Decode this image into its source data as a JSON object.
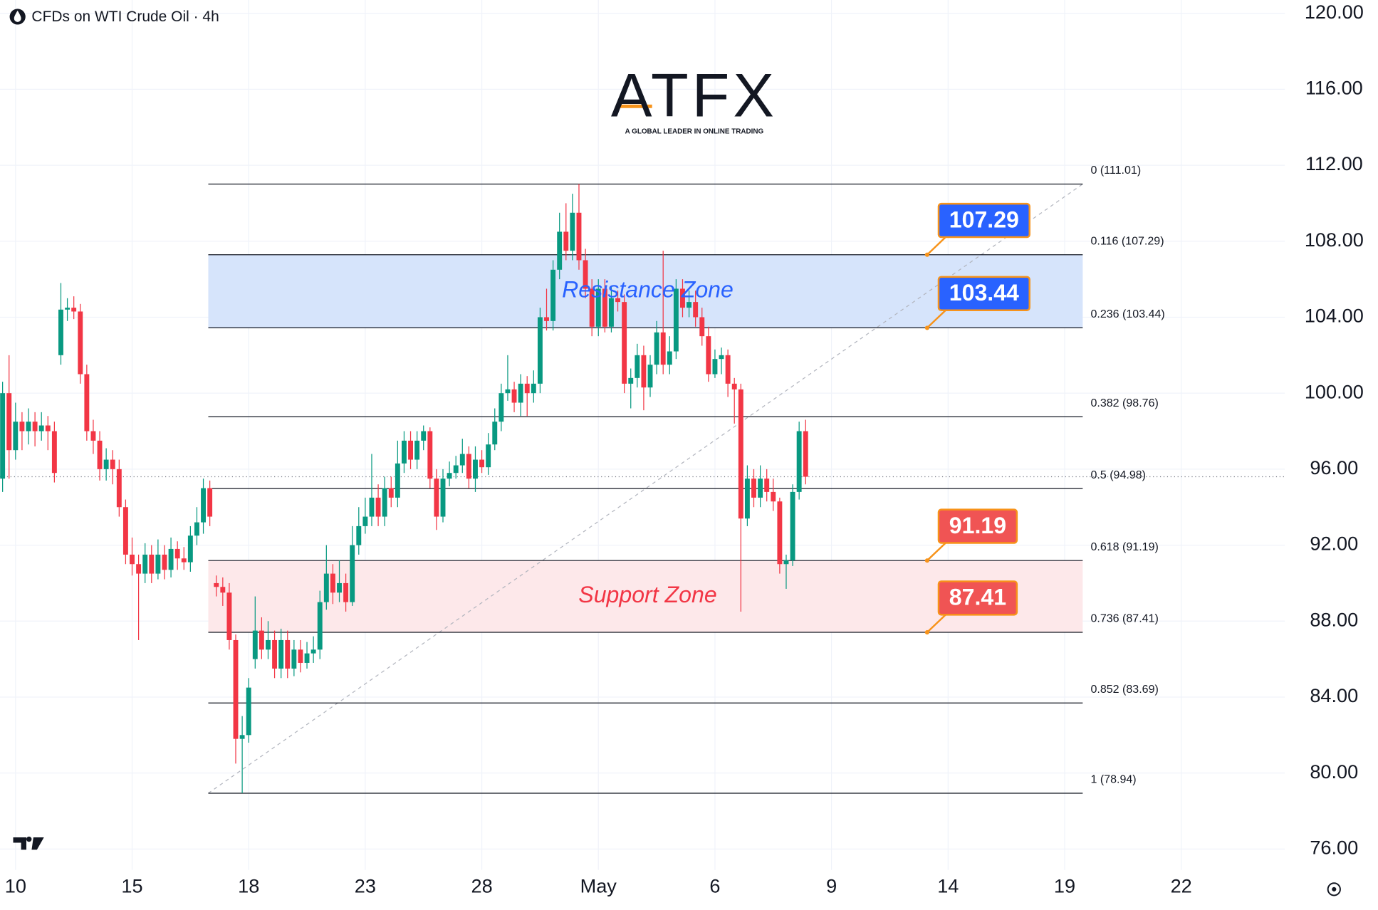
{
  "chart_data": {
    "type": "candlestick",
    "title": "CFDs on WTI Crude Oil · 4h",
    "logo": {
      "text": "ATFX",
      "tagline": "A GLOBAL LEADER IN ONLINE TRADING"
    },
    "up_color": "#089981",
    "down_color": "#f23645",
    "grid": true,
    "xlim": [
      -0.4,
      198
    ],
    "xticks": [
      {
        "value": 2,
        "label": "10"
      },
      {
        "value": 20,
        "label": "15"
      },
      {
        "value": 38,
        "label": "18"
      },
      {
        "value": 56,
        "label": "23"
      },
      {
        "value": 74,
        "label": "28"
      },
      {
        "value": 92,
        "label": "May"
      },
      {
        "value": 110,
        "label": "6"
      },
      {
        "value": 128,
        "label": "9"
      },
      {
        "value": 146,
        "label": "14"
      },
      {
        "value": 164,
        "label": "19"
      },
      {
        "value": 182,
        "label": "22"
      }
    ],
    "ylim": [
      74.9,
      120.7
    ],
    "yticks": [
      {
        "value": 76,
        "label": "76.00"
      },
      {
        "value": 80,
        "label": "80.00"
      },
      {
        "value": 84,
        "label": "84.00"
      },
      {
        "value": 88,
        "label": "88.00"
      },
      {
        "value": 92,
        "label": "92.00"
      },
      {
        "value": 96,
        "label": "96.00"
      },
      {
        "value": 100,
        "label": "100.00"
      },
      {
        "value": 104,
        "label": "104.00"
      },
      {
        "value": 108,
        "label": "108.00"
      },
      {
        "value": 112,
        "label": "112.00"
      },
      {
        "value": 116,
        "label": "116.00"
      },
      {
        "value": 120,
        "label": "120.00"
      }
    ],
    "open": [
      95.5,
      100,
      97,
      98.5,
      98,
      98.5,
      98,
      98.3,
      98,
      102,
      104.4,
      104.5,
      104.3,
      101,
      98,
      97.5,
      96,
      96.5,
      96,
      94,
      91.5,
      91,
      90.5,
      91.5,
      90.5,
      91.5,
      90.7,
      91.8,
      91.3,
      91.1,
      92.5,
      93.2,
      95,
      90,
      89.8,
      89.5,
      87,
      81.8,
      82,
      86,
      87.5,
      86.5,
      87,
      85.5,
      87,
      85.5,
      86.5,
      85.8,
      86.3,
      86.5,
      89,
      90.5,
      89.5,
      90,
      89,
      92,
      93,
      93.5,
      94.5,
      93.5,
      95,
      94.5,
      96.3,
      97.5,
      96.5,
      97.5,
      98,
      95.5,
      93.5,
      95.5,
      95.8,
      96.2,
      96.8,
      95.5,
      96.5,
      96.1,
      97.3,
      98.5,
      100,
      100.2,
      99.5,
      100.5,
      100,
      100.5,
      104,
      103.8,
      106.5,
      108.5,
      107.5,
      109.5,
      107,
      105.5,
      103.5,
      105.5,
      103.5,
      105,
      104.8,
      100.5,
      100.8,
      102,
      100.3,
      101.5,
      103.2,
      101.5,
      102.2,
      105.5,
      104.5,
      104.8,
      104,
      103,
      101,
      101.8,
      102,
      100.5,
      100.2,
      93.4,
      95.5,
      94.5,
      95.5,
      94.8,
      94.3,
      91,
      91.2,
      94.8,
      98
    ],
    "high": [
      100.6,
      102,
      99.5,
      99,
      99.2,
      99,
      99,
      98.8,
      98.5,
      105.8,
      105,
      105.1,
      104.7,
      101.5,
      98.6,
      98,
      97.1,
      97,
      96.5,
      94.4,
      92.4,
      91.5,
      92.1,
      92,
      92.3,
      92,
      92.4,
      92.2,
      91.9,
      93,
      94,
      95.5,
      95.4,
      90.4,
      90.3,
      90,
      87.3,
      83,
      85,
      89.3,
      88.2,
      88,
      87.5,
      87.6,
      87.5,
      87,
      87,
      86.9,
      87.2,
      89.6,
      92,
      91,
      91.2,
      90.5,
      93,
      94,
      94.5,
      96.8,
      95.2,
      95.6,
      95.6,
      97.5,
      98,
      98,
      98,
      98.3,
      98.2,
      96,
      96,
      96.4,
      96.7,
      97.6,
      97.2,
      97.2,
      97,
      97.9,
      99.2,
      100.5,
      102,
      100.6,
      101,
      100.9,
      101.2,
      104.5,
      105.5,
      107,
      109.5,
      110,
      110.5,
      111.01,
      107.6,
      106,
      106,
      106,
      105.6,
      105.4,
      105.2,
      101.3,
      102.6,
      102.5,
      102,
      103.8,
      107.5,
      103,
      106,
      106,
      105.4,
      105.4,
      104.5,
      103.5,
      102.3,
      102.4,
      102.3,
      100.8,
      100.5,
      96.2,
      96,
      96.2,
      96,
      95.5,
      94.5,
      91.5,
      95.2,
      98.5,
      98.6
    ],
    "low": [
      94.8,
      95.5,
      96.5,
      97,
      97.3,
      97.2,
      97.5,
      97,
      95.3,
      101.5,
      103.8,
      103.9,
      100.5,
      97.5,
      96.8,
      95.4,
      95.4,
      95.2,
      93.5,
      91,
      90.4,
      87,
      90,
      90,
      90.2,
      90.2,
      90.3,
      90.7,
      90.7,
      90.6,
      92,
      92.6,
      93,
      89.3,
      88.8,
      86.5,
      80.5,
      78.94,
      81.6,
      85.5,
      86,
      86,
      85,
      85,
      85,
      85.1,
      85.3,
      85.5,
      85.8,
      86,
      88.6,
      88.9,
      89,
      88.5,
      88.8,
      91.5,
      92.6,
      93,
      93,
      93,
      94,
      94,
      95.8,
      96,
      96,
      97,
      95,
      92.8,
      93.2,
      95.1,
      95.5,
      95.8,
      95,
      94.8,
      95.8,
      95.7,
      97,
      98,
      99.6,
      99,
      98.8,
      98.8,
      99.5,
      100,
      103.3,
      103.3,
      106,
      107,
      107,
      106.5,
      105,
      103,
      103,
      103.2,
      103.2,
      104.3,
      100,
      99.2,
      100.3,
      99.1,
      99.8,
      101,
      101,
      101,
      101.8,
      104,
      104,
      103.5,
      102.5,
      100.6,
      100.8,
      101,
      99.8,
      98.4,
      88.5,
      93,
      94,
      94,
      94.3,
      93.8,
      90.5,
      89.7,
      90.9,
      94.4,
      95.2
    ],
    "close": [
      100,
      97,
      98.5,
      98,
      98.5,
      98,
      98.3,
      98,
      95.8,
      104.4,
      104.5,
      104.3,
      101,
      98,
      97.5,
      96,
      96.5,
      96,
      94,
      91.5,
      91,
      90.5,
      91.5,
      90.5,
      91.5,
      90.7,
      91.8,
      91.3,
      91.1,
      92.5,
      93.2,
      95,
      93.5,
      89.8,
      89.5,
      87,
      81.8,
      82,
      84.5,
      87.5,
      86.5,
      87,
      85.5,
      87,
      85.5,
      86.5,
      85.8,
      86.3,
      86.5,
      89,
      90.5,
      89.5,
      90,
      89,
      92,
      93,
      93.5,
      94.5,
      93.5,
      95,
      94.5,
      96.3,
      97.5,
      96.5,
      97.5,
      98,
      95.5,
      93.5,
      95.5,
      95.8,
      96.2,
      96.8,
      95.5,
      96.5,
      96.1,
      97.3,
      98.5,
      100,
      100.2,
      99.5,
      100.5,
      100,
      100.5,
      104,
      103.8,
      106.5,
      108.5,
      107.5,
      109.5,
      107,
      105.5,
      103.5,
      105.5,
      103.5,
      105,
      104.8,
      100.5,
      100.8,
      102,
      100.3,
      101.5,
      103.2,
      101.5,
      102.2,
      105.5,
      104.5,
      104.8,
      104,
      103,
      101,
      101.8,
      102,
      100.5,
      100.2,
      93.4,
      95.5,
      94.5,
      95.5,
      94.8,
      94.3,
      91,
      91.2,
      94.8,
      98,
      95.6
    ],
    "fib_levels": [
      {
        "value": 111.01,
        "label": "0 (111.01)"
      },
      {
        "value": 107.29,
        "label": "0.116 (107.29)"
      },
      {
        "value": 103.44,
        "label": "0.236 (103.44)"
      },
      {
        "value": 98.76,
        "label": "0.382 (98.76)"
      },
      {
        "value": 94.98,
        "label": "0.5 (94.98)"
      },
      {
        "value": 91.19,
        "label": "0.618 (91.19)"
      },
      {
        "value": 87.41,
        "label": "0.736 (87.41)"
      },
      {
        "value": 83.69,
        "label": "0.852 (83.69)"
      },
      {
        "value": 78.94,
        "label": "1 (78.94)"
      }
    ],
    "zones": [
      {
        "label": "Resistance Zone",
        "from": 103.44,
        "to": 107.29,
        "color": "#d6e4fb",
        "text_color": "#2962ff"
      },
      {
        "label": "Support Zone",
        "from": 87.41,
        "to": 91.19,
        "color": "#fde8ea",
        "text_color": "#f23645"
      }
    ],
    "price_tags": [
      {
        "value": 107.29,
        "color": "#2962ff"
      },
      {
        "value": 103.44,
        "color": "#2962ff"
      },
      {
        "value": 91.19,
        "color": "#f05454"
      },
      {
        "value": 87.41,
        "color": "#f05454"
      }
    ]
  }
}
